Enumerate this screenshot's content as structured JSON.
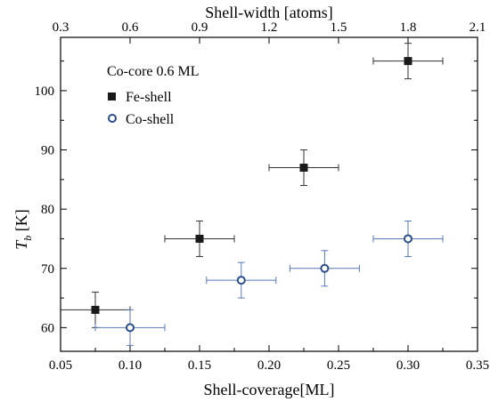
{
  "chart_data": {
    "type": "scatter",
    "xlabel": "Shell-coverage[ML]",
    "x2label": "Shell-width [atoms]",
    "ylabel_main": "T",
    "ylabel_sub": "b",
    "ylabel_unit": " [K]",
    "xlim": [
      0.05,
      0.35
    ],
    "ylim": [
      56,
      109
    ],
    "x2lim": [
      0.3,
      2.1
    ],
    "xticks": [
      "0.05",
      "0.10",
      "0.15",
      "0.20",
      "0.25",
      "0.30",
      "0.35"
    ],
    "x2ticks": [
      "0.3",
      "0.6",
      "0.9",
      "1.2",
      "1.5",
      "1.8",
      "2.1"
    ],
    "yticks": [
      "60",
      "70",
      "80",
      "90",
      "100"
    ],
    "annotation": "Co-core 0.6 ML",
    "legend_position": "top-left",
    "series": [
      {
        "name": "Fe-shell",
        "marker": "filled-square",
        "color": "#1a1a1a",
        "errcolor": "#333333",
        "points": [
          {
            "x": 0.075,
            "y": 63,
            "xerr": 0.025,
            "yerr": 3
          },
          {
            "x": 0.15,
            "y": 75,
            "xerr": 0.025,
            "yerr": 3
          },
          {
            "x": 0.225,
            "y": 87,
            "xerr": 0.025,
            "yerr": 3
          },
          {
            "x": 0.3,
            "y": 105,
            "xerr": 0.025,
            "yerr": 3
          }
        ]
      },
      {
        "name": "Co-shell",
        "marker": "open-circle",
        "color": "#2b4d8c",
        "errcolor": "#5a78b8",
        "points": [
          {
            "x": 0.1,
            "y": 60,
            "xerr": 0.025,
            "yerr": 3
          },
          {
            "x": 0.18,
            "y": 68,
            "xerr": 0.025,
            "yerr": 3
          },
          {
            "x": 0.24,
            "y": 70,
            "xerr": 0.025,
            "yerr": 3
          },
          {
            "x": 0.3,
            "y": 75,
            "xerr": 0.025,
            "yerr": 3
          }
        ]
      }
    ]
  }
}
